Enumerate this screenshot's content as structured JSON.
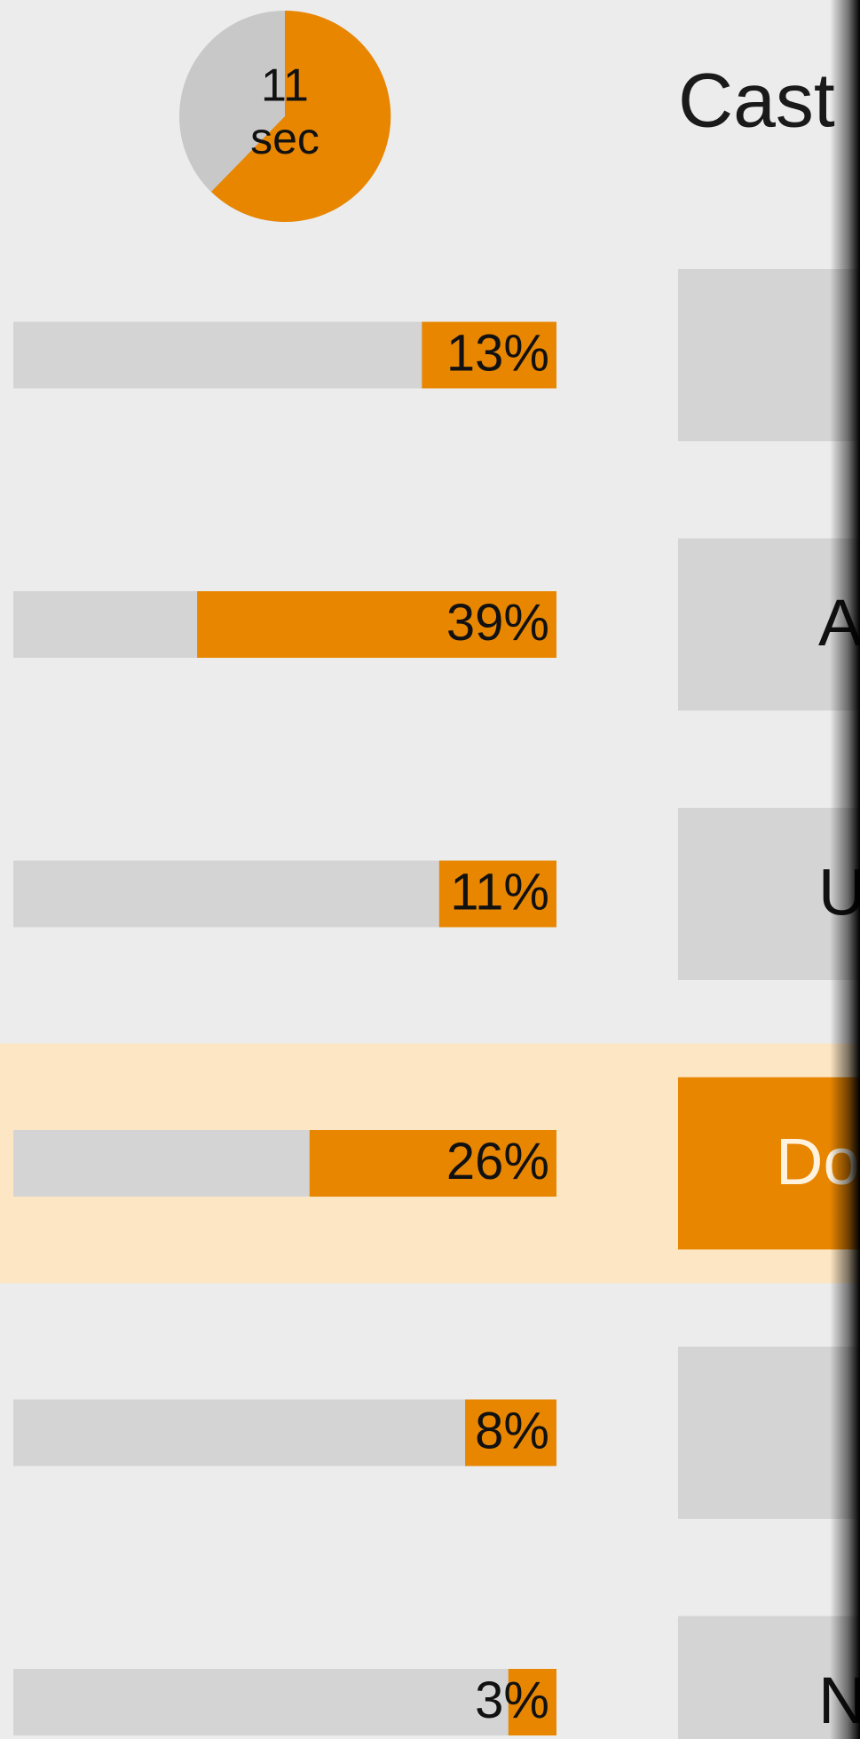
{
  "timer": {
    "value": 11,
    "unit": "sec"
  },
  "question": "Cast",
  "options": [
    {
      "percent": 13,
      "percent_label": "13%"
    },
    {
      "label": "A",
      "percent": 39,
      "percent_label": "39%"
    },
    {
      "label": "U",
      "percent": 11,
      "percent_label": "11%"
    },
    {
      "label": "Do",
      "percent": 26,
      "percent_label": "26%"
    },
    {
      "percent": 8,
      "percent_label": "8%"
    },
    {
      "label": "N",
      "percent": 3,
      "percent_label": "3%"
    }
  ],
  "selected": 3
}
